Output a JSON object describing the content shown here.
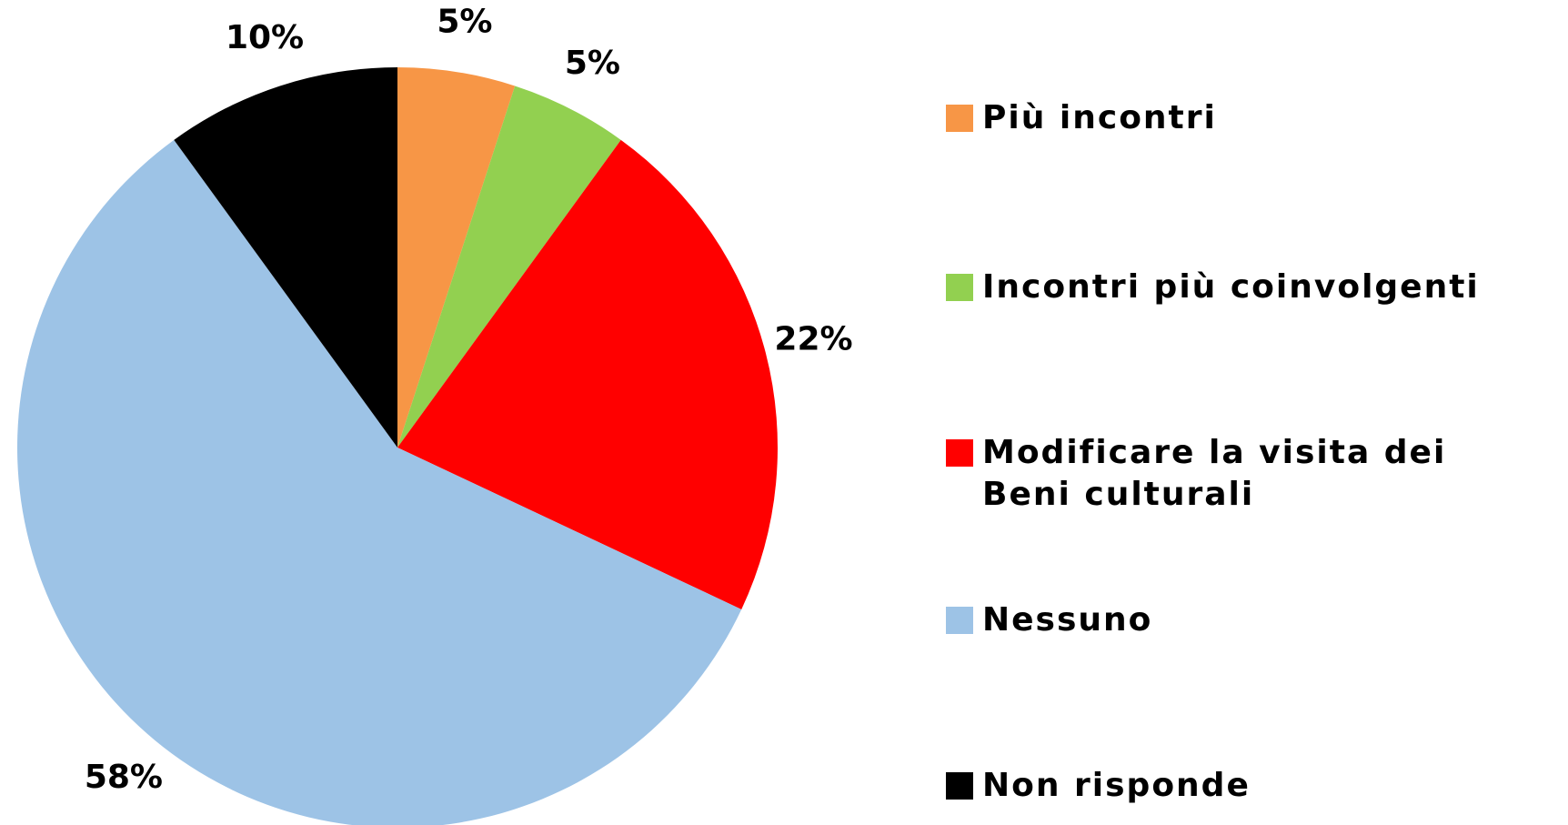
{
  "chart_data": {
    "type": "pie",
    "categories": [
      "Più incontri",
      "Incontri più coinvolgenti",
      "Modificare la visita dei Beni culturali",
      "Nessuno",
      "Non risponde"
    ],
    "values": [
      5,
      5,
      22,
      58,
      10
    ],
    "value_labels": [
      "5%",
      "5%",
      "22%",
      "58%",
      "10%"
    ],
    "colors": [
      "#f79646",
      "#92d050",
      "#ff0000",
      "#9dc3e6",
      "#000000"
    ],
    "legend": "right"
  }
}
